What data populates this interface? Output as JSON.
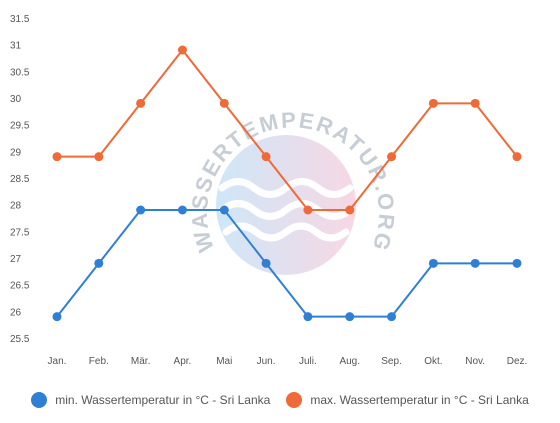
{
  "chart_data": {
    "type": "line",
    "categories": [
      "Jan.",
      "Feb.",
      "Mär.",
      "Apr.",
      "Mai",
      "Jun.",
      "Juli.",
      "Aug.",
      "Sep.",
      "Okt.",
      "Nov.",
      "Dez."
    ],
    "series": [
      {
        "name": "min. Wassertemperatur in °C - Sri Lanka",
        "color": "#2f80d4",
        "values": [
          25.9,
          26.9,
          27.9,
          27.9,
          27.9,
          26.9,
          25.9,
          25.9,
          25.9,
          26.9,
          26.9,
          26.9
        ]
      },
      {
        "name": "max. Wassertemperatur in °C - Sri Lanka",
        "color": "#ef6a36",
        "values": [
          28.9,
          28.9,
          29.9,
          30.9,
          29.9,
          28.9,
          27.9,
          27.9,
          28.9,
          29.9,
          29.9,
          28.9
        ]
      }
    ],
    "yticks": [
      "25.5",
      "26",
      "26.5",
      "27",
      "27.5",
      "28",
      "28.5",
      "29",
      "29.5",
      "30",
      "30.5",
      "31",
      "31.5"
    ],
    "ylim": [
      25.5,
      31.5
    ],
    "grid": false,
    "legend_position": "bottom"
  },
  "watermark": {
    "text": "WASSERTEMPERATUR.ORG"
  }
}
